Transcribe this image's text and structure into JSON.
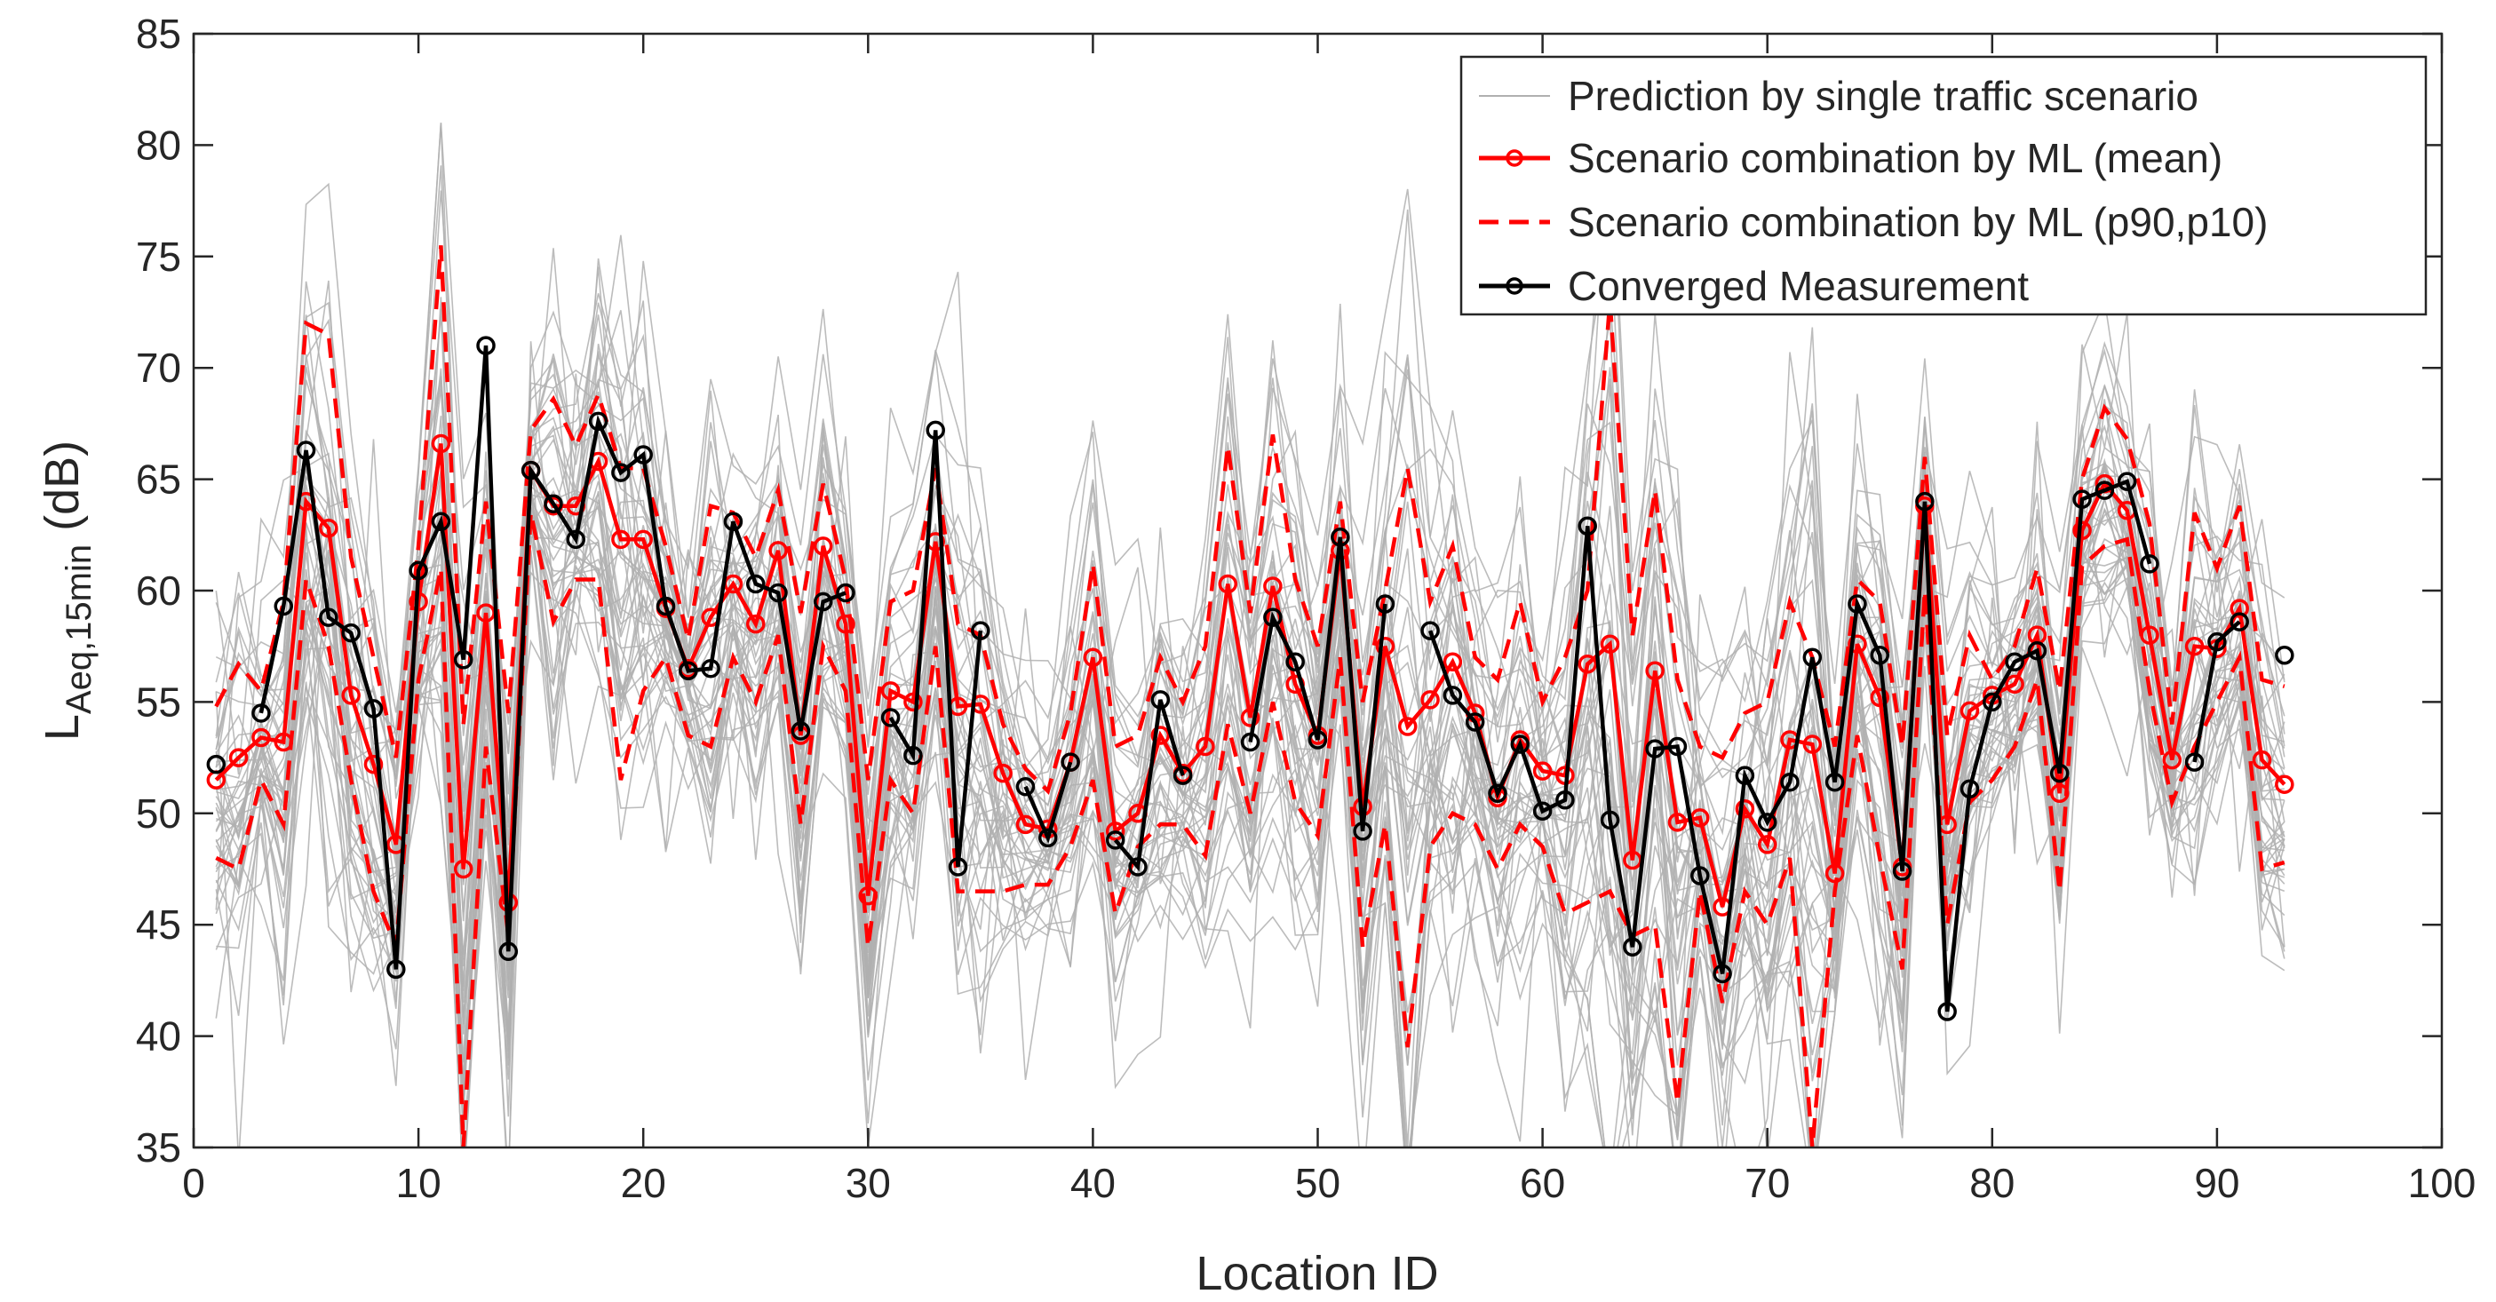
{
  "chart_data": {
    "type": "line",
    "title": "",
    "xlabel": "Location ID",
    "ylabel": {
      "main": "L",
      "subscript": "Aeq,15min",
      "suffix": " (dB)"
    },
    "xlim": [
      0,
      100
    ],
    "ylim": [
      35,
      85
    ],
    "xticks": [
      0,
      10,
      20,
      30,
      40,
      50,
      60,
      70,
      80,
      90,
      100
    ],
    "yticks": [
      35,
      40,
      45,
      50,
      55,
      60,
      65,
      70,
      75,
      80,
      85
    ],
    "grid": false,
    "legend_position": "top-right",
    "series": [
      {
        "name": "Prediction by single traffic scenario",
        "style": "thin solid lines, many scenarios",
        "color": "#b0b0b0",
        "x_range": [
          1,
          93
        ],
        "value_range": [
          35,
          81
        ]
      },
      {
        "name": "Scenario combination by ML (mean)",
        "style": "solid line with circle markers",
        "color": "#ff0000",
        "x": [
          1,
          2,
          3,
          4,
          5,
          6,
          7,
          8,
          9,
          10,
          11,
          12,
          13,
          14,
          15,
          16,
          17,
          18,
          19,
          20,
          21,
          22,
          23,
          24,
          25,
          26,
          27,
          28,
          29,
          30,
          31,
          32,
          33,
          34,
          35,
          36,
          37,
          38,
          39,
          40,
          41,
          42,
          43,
          44,
          45,
          46,
          47,
          48,
          49,
          50,
          51,
          52,
          53,
          54,
          55,
          56,
          57,
          58,
          59,
          60,
          61,
          62,
          63,
          64,
          65,
          66,
          67,
          68,
          69,
          70,
          71,
          72,
          73,
          74,
          75,
          76,
          77,
          78,
          79,
          80,
          81,
          82,
          83,
          84,
          85,
          86,
          87,
          88,
          89,
          90,
          91,
          92,
          93
        ],
        "values": [
          51.5,
          52.5,
          53.4,
          53.2,
          64,
          62.8,
          55.3,
          52.2,
          48.6,
          59.5,
          66.6,
          47.5,
          59,
          46,
          65.4,
          63.8,
          63.8,
          65.8,
          62.3,
          62.3,
          59.2,
          56.5,
          58.8,
          60.3,
          58.5,
          61.8,
          53.5,
          62,
          58.5,
          46.3,
          55.5,
          55,
          62.2,
          54.8,
          54.9,
          51.8,
          49.5,
          49.3,
          52.3,
          57,
          49.2,
          50,
          53.5,
          51.8,
          53,
          60.3,
          54.3,
          60.2,
          55.8,
          53.5,
          61.8,
          50.3,
          57.5,
          53.9,
          55.1,
          56.8,
          54.5,
          50.7,
          53.3,
          51.9,
          51.7,
          56.7,
          57.6,
          47.9,
          56.4,
          49.6,
          49.8,
          45.8,
          50.2,
          48.6,
          53.3,
          53.1,
          47.3,
          57.6,
          55.2,
          47.6,
          63.8,
          49.5,
          54.6,
          55.3,
          55.8,
          58,
          50.9,
          62.7,
          64.8,
          63.6,
          58,
          52.4,
          57.5,
          57.4,
          59.2,
          52.4,
          51.3
        ]
      },
      {
        "name": "Scenario combination by ML (p90,p10)",
        "style": "dashed lines (upper p90, lower p10)",
        "color": "#ff0000",
        "x": [
          1,
          2,
          3,
          4,
          5,
          6,
          7,
          8,
          9,
          10,
          11,
          12,
          13,
          14,
          15,
          16,
          17,
          18,
          19,
          20,
          21,
          22,
          23,
          24,
          25,
          26,
          27,
          28,
          29,
          30,
          31,
          32,
          33,
          34,
          35,
          36,
          37,
          38,
          39,
          40,
          41,
          42,
          43,
          44,
          45,
          46,
          47,
          48,
          49,
          50,
          51,
          52,
          53,
          54,
          55,
          56,
          57,
          58,
          59,
          60,
          61,
          62,
          63,
          64,
          65,
          66,
          67,
          68,
          69,
          70,
          71,
          72,
          73,
          74,
          75,
          76,
          77,
          78,
          79,
          80,
          81,
          82,
          83,
          84,
          85,
          86,
          87,
          88,
          89,
          90,
          91,
          92,
          93
        ],
        "p90": [
          54.8,
          56.7,
          55.5,
          59.5,
          72,
          71.5,
          61.5,
          57,
          52.5,
          62,
          75.5,
          54,
          64,
          54.5,
          67.2,
          68.6,
          66.5,
          68.8,
          65.5,
          65.5,
          62,
          57.8,
          63.8,
          63.5,
          61.5,
          64.5,
          59,
          64.8,
          60.5,
          51.5,
          59.5,
          60,
          65.5,
          58.5,
          58,
          54,
          52,
          51,
          54.5,
          61.2,
          53,
          53.5,
          57,
          55,
          57.5,
          66.5,
          59,
          67,
          60.5,
          57.5,
          64,
          55,
          60,
          65.5,
          59.5,
          62,
          57,
          56,
          59.5,
          55,
          57,
          60,
          73,
          58,
          64.5,
          56,
          53,
          52.5,
          54.5,
          55,
          59.5,
          57,
          53,
          60.5,
          59.5,
          53,
          66,
          53.5,
          58,
          56,
          57.5,
          61,
          55.5,
          65,
          68.2,
          66.8,
          63,
          54,
          63.5,
          61,
          63.8,
          56,
          55.7
        ],
        "p10": [
          48,
          47.5,
          51.5,
          49.5,
          60.5,
          57.5,
          51.5,
          46.5,
          44,
          56,
          61,
          35,
          53,
          44.5,
          63.5,
          58.6,
          60.5,
          60.5,
          51.5,
          55.5,
          57,
          53.5,
          53,
          57,
          55,
          58,
          49.5,
          57.5,
          55.5,
          44,
          51.5,
          50,
          57.5,
          46.5,
          46.5,
          46.5,
          46.8,
          46.8,
          48.5,
          51.5,
          45.5,
          48.5,
          49.5,
          49.5,
          48.1,
          54,
          50,
          55,
          50.5,
          49,
          57,
          44,
          49.5,
          39.5,
          48.5,
          50,
          49.5,
          47.5,
          49.5,
          48.5,
          45.5,
          46,
          46.5,
          44.5,
          45,
          37,
          46.5,
          41.5,
          46.5,
          45,
          48,
          35,
          46.5,
          53.5,
          48,
          43,
          60,
          45,
          50.5,
          51.5,
          53,
          56,
          46.5,
          61.1,
          62,
          62.3,
          55.5,
          50.5,
          53,
          55,
          57,
          47.5,
          47.8
        ]
      },
      {
        "name": "Converged Measurement",
        "style": "solid line with circle markers",
        "color": "#000000",
        "x": [
          1,
          3,
          4,
          5,
          6,
          7,
          8,
          9,
          10,
          11,
          12,
          13,
          14,
          15,
          16,
          17,
          18,
          19,
          20,
          21,
          22,
          23,
          24,
          25,
          26,
          27,
          28,
          29,
          31,
          32,
          33,
          34,
          35,
          37,
          38,
          39,
          41,
          42,
          43,
          44,
          47,
          48,
          49,
          50,
          51,
          52,
          53,
          55,
          56,
          57,
          58,
          59,
          60,
          61,
          62,
          63,
          64,
          65,
          66,
          67,
          68,
          69,
          70,
          71,
          72,
          73,
          74,
          75,
          76,
          77,
          78,
          79,
          80,
          81,
          82,
          83,
          84,
          85,
          86,
          87,
          89,
          90,
          91,
          93
        ],
        "values": [
          52.2,
          54.5,
          59.3,
          66.3,
          58.8,
          58.1,
          54.7,
          43,
          60.9,
          63.1,
          56.9,
          71,
          43.8,
          65.4,
          63.9,
          62.3,
          67.6,
          65.3,
          66.1,
          59.3,
          56.4,
          56.5,
          63.1,
          60.3,
          59.9,
          53.7,
          59.5,
          59.9,
          54.3,
          52.6,
          67.2,
          47.6,
          58.2,
          51.2,
          48.9,
          52.3,
          48.8,
          47.6,
          55.1,
          51.7,
          53.2,
          58.8,
          56.8,
          53.3,
          62.4,
          49.2,
          59.4,
          58.2,
          55.3,
          54.1,
          50.9,
          53.1,
          50.1,
          50.6,
          62.9,
          49.7,
          44,
          52.9,
          53,
          47.2,
          42.8,
          51.7,
          49.6,
          51.4,
          57,
          51.4,
          59.4,
          57.1,
          47.4,
          64,
          41.1,
          51.1,
          55,
          56.8,
          57.3,
          51.8,
          64.1,
          64.5,
          64.9,
          61.2,
          52.3,
          57.7,
          58.6,
          57.1
        ]
      }
    ]
  }
}
